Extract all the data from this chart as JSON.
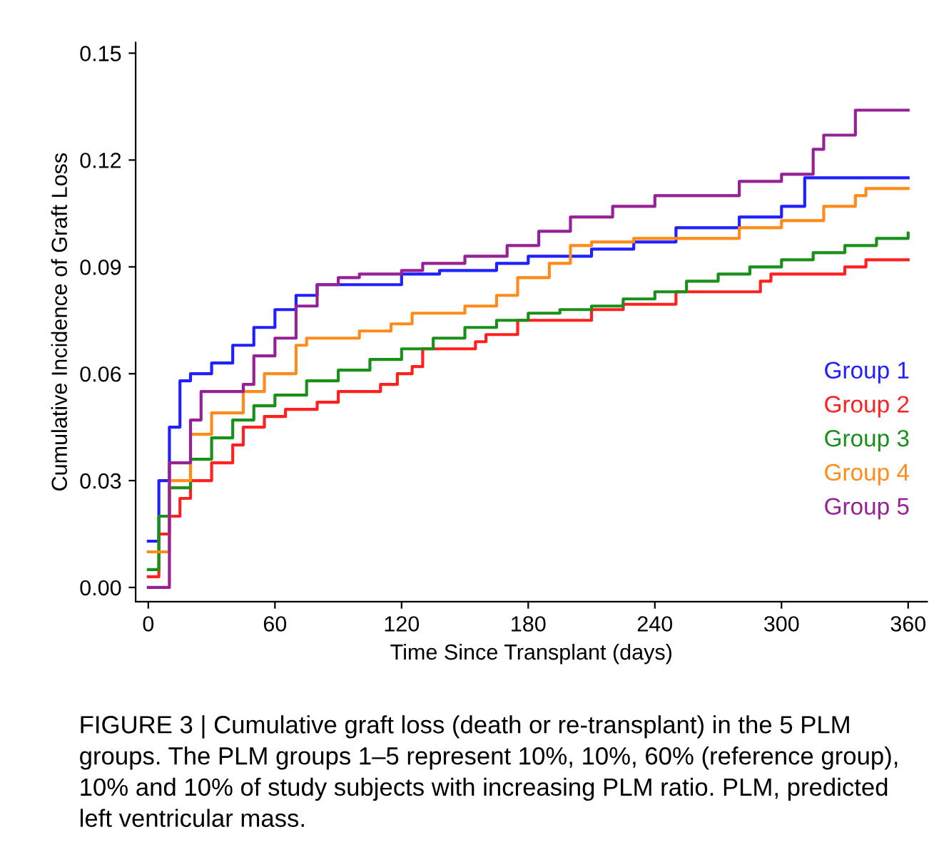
{
  "chart_data": {
    "type": "step",
    "xlabel": "Time Since Transplant (days)",
    "ylabel": "Cumulative Incidence of Graft Loss",
    "xlim": [
      -6,
      369
    ],
    "ylim": [
      -0.004,
      0.153
    ],
    "xticks": [
      0,
      60,
      120,
      180,
      240,
      300,
      360
    ],
    "yticks": [
      {
        "value": 0,
        "label": "0.00"
      },
      {
        "value": 0.03,
        "label": "0.03"
      },
      {
        "value": 0.06,
        "label": "0.06"
      },
      {
        "value": 0.09,
        "label": "0.09"
      },
      {
        "value": 0.12,
        "label": "0.12"
      },
      {
        "value": 0.15,
        "label": "0.15"
      }
    ],
    "grid": false,
    "legend": "bottom right",
    "line_style": "solid",
    "marker": "none",
    "series": [
      {
        "name": "Group 1",
        "color": "#1f1fff",
        "x": [
          0,
          5,
          10,
          15,
          20,
          30,
          40,
          50,
          60,
          70,
          80,
          100,
          120,
          138,
          165,
          180,
          210,
          230,
          250,
          280,
          300,
          311,
          360
        ],
        "values": [
          0.013,
          0.03,
          0.045,
          0.058,
          0.06,
          0.063,
          0.068,
          0.073,
          0.078,
          0.082,
          0.085,
          0.085,
          0.088,
          0.089,
          0.091,
          0.093,
          0.095,
          0.097,
          0.101,
          0.104,
          0.107,
          0.115,
          0.115
        ]
      },
      {
        "name": "Group 2",
        "color": "#ff2020",
        "x": [
          0,
          5,
          10,
          15,
          20,
          30,
          40,
          45,
          55,
          65,
          80,
          90,
          110,
          118,
          125,
          130,
          155,
          160,
          175,
          210,
          225,
          250,
          290,
          295,
          330,
          340,
          360
        ],
        "values": [
          0.003,
          0.015,
          0.02,
          0.025,
          0.03,
          0.035,
          0.04,
          0.045,
          0.048,
          0.05,
          0.052,
          0.055,
          0.057,
          0.06,
          0.062,
          0.067,
          0.069,
          0.071,
          0.075,
          0.078,
          0.0795,
          0.083,
          0.086,
          0.088,
          0.09,
          0.092,
          0.092
        ]
      },
      {
        "name": "Group 3",
        "color": "#1a8f1a",
        "x": [
          0,
          5,
          10,
          20,
          30,
          40,
          50,
          60,
          75,
          90,
          105,
          120,
          135,
          150,
          165,
          180,
          195,
          210,
          225,
          240,
          255,
          270,
          285,
          300,
          315,
          330,
          345,
          360
        ],
        "values": [
          0.005,
          0.02,
          0.028,
          0.036,
          0.042,
          0.047,
          0.051,
          0.054,
          0.058,
          0.061,
          0.064,
          0.067,
          0.07,
          0.073,
          0.075,
          0.077,
          0.078,
          0.079,
          0.081,
          0.083,
          0.086,
          0.088,
          0.09,
          0.092,
          0.094,
          0.096,
          0.098,
          0.0995
        ]
      },
      {
        "name": "Group 4",
        "color": "#ff8c1a",
        "x": [
          0,
          10,
          20,
          30,
          45,
          55,
          70,
          75,
          100,
          115,
          125,
          150,
          165,
          175,
          190,
          200,
          210,
          230,
          280,
          300,
          320,
          335,
          340,
          360
        ],
        "values": [
          0.01,
          0.03,
          0.043,
          0.049,
          0.055,
          0.06,
          0.068,
          0.07,
          0.072,
          0.074,
          0.077,
          0.079,
          0.082,
          0.087,
          0.091,
          0.096,
          0.097,
          0.098,
          0.101,
          0.103,
          0.107,
          0.11,
          0.112,
          0.112
        ]
      },
      {
        "name": "Group 5",
        "color": "#962196",
        "x": [
          0,
          10,
          20,
          25,
          45,
          50,
          60,
          70,
          80,
          90,
          100,
          120,
          130,
          150,
          170,
          185,
          200,
          220,
          240,
          270,
          280,
          300,
          315,
          320,
          335,
          360
        ],
        "values": [
          0,
          0.035,
          0.047,
          0.055,
          0.057,
          0.065,
          0.07,
          0.079,
          0.085,
          0.087,
          0.088,
          0.089,
          0.091,
          0.093,
          0.096,
          0.1,
          0.104,
          0.107,
          0.11,
          0.11,
          0.114,
          0.116,
          0.123,
          0.127,
          0.134,
          0.134
        ]
      }
    ],
    "annotations": [
      "FIGURE 3 | Cumulative graft loss (death or re-transplant) in the 5 PLM groups. The PLM groups 1–5 represent 10%, 10%, 60% (reference group), 10% and 10% of study subjects with increasing PLM ratio. PLM, predicted left ventricular mass."
    ]
  }
}
